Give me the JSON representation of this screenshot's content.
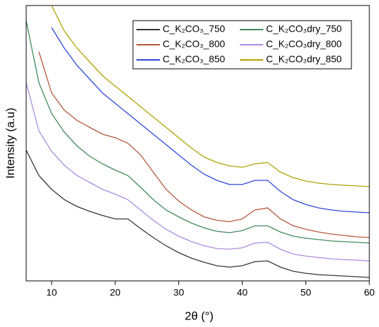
{
  "chart_data": {
    "type": "line",
    "xlabel": "2θ (°)",
    "ylabel": "Intensity (a.u)",
    "x": [
      6,
      8,
      10,
      12,
      14,
      16,
      18,
      20,
      22,
      24,
      26,
      28,
      30,
      32,
      34,
      36,
      38,
      40,
      42,
      44,
      46,
      48,
      50,
      52,
      54,
      56,
      58,
      60
    ],
    "xlim": [
      6,
      60
    ],
    "xticks": [
      10,
      20,
      30,
      40,
      50,
      60
    ],
    "ylim": [
      0,
      400
    ],
    "legend": "upper right",
    "series": [
      {
        "name": "C_K₂CO₃_750",
        "color": "#333333",
        "values": [
          190,
          153,
          133,
          118,
          108,
          101,
          95,
          90,
          90,
          76,
          63,
          51,
          41,
          33,
          27,
          22,
          20,
          22,
          28,
          29,
          20,
          14,
          11,
          9,
          8,
          7,
          6,
          5
        ]
      },
      {
        "name": "C_K₂CO₃_800",
        "color": "#b5553a",
        "values": [
          null,
          333,
          273,
          248,
          233,
          223,
          213,
          208,
          200,
          183,
          158,
          133,
          116,
          103,
          93,
          88,
          86,
          90,
          103,
          106,
          90,
          80,
          75,
          71,
          68,
          66,
          64,
          63
        ]
      },
      {
        "name": "C_K₂CO₃_850",
        "color": "#2a44d8",
        "values": [
          null,
          null,
          368,
          338,
          313,
          293,
          273,
          258,
          243,
          228,
          213,
          198,
          183,
          168,
          155,
          146,
          140,
          140,
          146,
          146,
          130,
          118,
          111,
          106,
          103,
          101,
          100,
          99
        ]
      },
      {
        "name": "C_K₂CO₃dry_750",
        "color": "#3d8a5a",
        "values": [
          378,
          288,
          243,
          216,
          196,
          181,
          170,
          161,
          153,
          136,
          118,
          103,
          93,
          84,
          77,
          72,
          70,
          73,
          80,
          80,
          71,
          65,
          62,
          60,
          58,
          57,
          56,
          55
        ]
      },
      {
        "name": "C_K₂CO₃dry_800",
        "color": "#a98be0",
        "values": [
          288,
          218,
          188,
          168,
          153,
          143,
          133,
          126,
          118,
          103,
          88,
          75,
          65,
          57,
          51,
          47,
          46,
          48,
          55,
          56,
          46,
          39,
          36,
          34,
          32,
          31,
          30,
          29
        ]
      },
      {
        "name": "C_K₂CO₃dry_850",
        "color": "#b0a000",
        "values": [
          null,
          null,
          400,
          363,
          338,
          318,
          298,
          283,
          268,
          253,
          238,
          223,
          208,
          193,
          180,
          172,
          167,
          165,
          170,
          172,
          158,
          150,
          145,
          142,
          140,
          139,
          138,
          137
        ]
      }
    ]
  }
}
